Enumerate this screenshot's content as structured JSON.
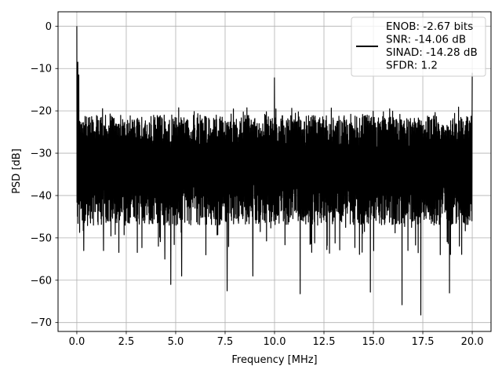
{
  "chart_data": {
    "type": "line",
    "title": "",
    "xlabel": "Frequency [MHz]",
    "ylabel": "PSD [dB]",
    "xlim": [
      -0.95,
      20.95
    ],
    "ylim": [
      -72.1,
      3.4
    ],
    "xticks": [
      0.0,
      2.5,
      5.0,
      7.5,
      10.0,
      12.5,
      15.0,
      17.5,
      20.0
    ],
    "xtick_labels": [
      "0.0",
      "2.5",
      "5.0",
      "7.5",
      "10.0",
      "12.5",
      "15.0",
      "17.5",
      "20.0"
    ],
    "yticks": [
      0,
      -10,
      -20,
      -30,
      -40,
      -50,
      -60,
      -70
    ],
    "ytick_labels": [
      "0",
      "−10",
      "−20",
      "−30",
      "−40",
      "−50",
      "−60",
      "−70"
    ],
    "grid": true,
    "legend_position": "top-right",
    "series": [
      {
        "name": "ENOB: -2.67 bits\nSNR: -14.06 dB\nSINAD: -14.28 dB\nSFDR: 1.2",
        "color": "#000000",
        "description": "dense noise-like PSD",
        "noise_band_upper_db": -25,
        "noise_band_lower_db": -42,
        "peaks": [
          {
            "x": 0.0,
            "y": 0.0
          },
          {
            "x": 0.05,
            "y": -8.5
          },
          {
            "x": 0.1,
            "y": -11.5
          },
          {
            "x": 10.0,
            "y": -12.2
          },
          {
            "x": 20.0,
            "y": -11.0
          }
        ],
        "dips": [
          {
            "x": 0.35,
            "y": -53.0
          },
          {
            "x": 1.35,
            "y": -53.0
          },
          {
            "x": 4.45,
            "y": -55.0
          },
          {
            "x": 4.75,
            "y": -61.0
          },
          {
            "x": 5.3,
            "y": -59.0
          },
          {
            "x": 7.6,
            "y": -62.5
          },
          {
            "x": 8.9,
            "y": -59.0
          },
          {
            "x": 11.3,
            "y": -63.2
          },
          {
            "x": 14.85,
            "y": -62.8
          },
          {
            "x": 16.45,
            "y": -65.8
          },
          {
            "x": 17.4,
            "y": -68.2
          },
          {
            "x": 18.85,
            "y": -63.0
          }
        ]
      }
    ]
  }
}
